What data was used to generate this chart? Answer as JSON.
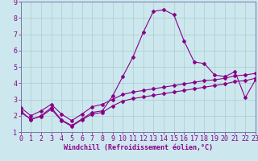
{
  "xlabel": "Windchill (Refroidissement éolien,°C)",
  "xlim": [
    0,
    23
  ],
  "ylim": [
    1,
    9
  ],
  "xticks": [
    0,
    1,
    2,
    3,
    4,
    5,
    6,
    7,
    8,
    9,
    10,
    11,
    12,
    13,
    14,
    15,
    16,
    17,
    18,
    19,
    20,
    21,
    22,
    23
  ],
  "yticks": [
    1,
    2,
    3,
    4,
    5,
    6,
    7,
    8,
    9
  ],
  "bg_color": "#cce8ee",
  "line_color": "#880088",
  "grid_color": "#aacccc",
  "spine_color": "#7777aa",
  "curve1_x": [
    0,
    1,
    2,
    3,
    4,
    5,
    6,
    7,
    8,
    9,
    10,
    11,
    12,
    13,
    14,
    15,
    16,
    17,
    18,
    19,
    20,
    21,
    22,
    23
  ],
  "curve1_y": [
    2.3,
    1.75,
    2.0,
    2.5,
    1.75,
    1.4,
    1.8,
    2.2,
    2.3,
    3.2,
    4.4,
    5.6,
    7.1,
    8.4,
    8.5,
    8.2,
    6.6,
    5.3,
    5.2,
    4.5,
    4.4,
    4.7,
    3.1,
    4.2
  ],
  "curve2_x": [
    0,
    1,
    2,
    3,
    4,
    5,
    6,
    7,
    8,
    9,
    10,
    11,
    12,
    13,
    14,
    15,
    16,
    17,
    18,
    19,
    20,
    21,
    22,
    23
  ],
  "curve2_y": [
    2.5,
    2.0,
    2.3,
    2.7,
    2.1,
    1.7,
    2.1,
    2.55,
    2.7,
    3.0,
    3.3,
    3.45,
    3.55,
    3.65,
    3.75,
    3.85,
    3.95,
    4.05,
    4.15,
    4.2,
    4.3,
    4.45,
    4.5,
    4.6
  ],
  "curve3_x": [
    0,
    1,
    2,
    3,
    4,
    5,
    6,
    7,
    8,
    9,
    10,
    11,
    12,
    13,
    14,
    15,
    16,
    17,
    18,
    19,
    20,
    21,
    22,
    23
  ],
  "curve3_y": [
    2.2,
    1.8,
    1.95,
    2.4,
    1.7,
    1.35,
    1.75,
    2.1,
    2.2,
    2.6,
    2.9,
    3.05,
    3.15,
    3.25,
    3.35,
    3.45,
    3.55,
    3.65,
    3.75,
    3.85,
    3.95,
    4.1,
    4.15,
    4.3
  ],
  "font_size": 6,
  "marker": "D",
  "marker_size": 2.0,
  "line_width": 0.8
}
